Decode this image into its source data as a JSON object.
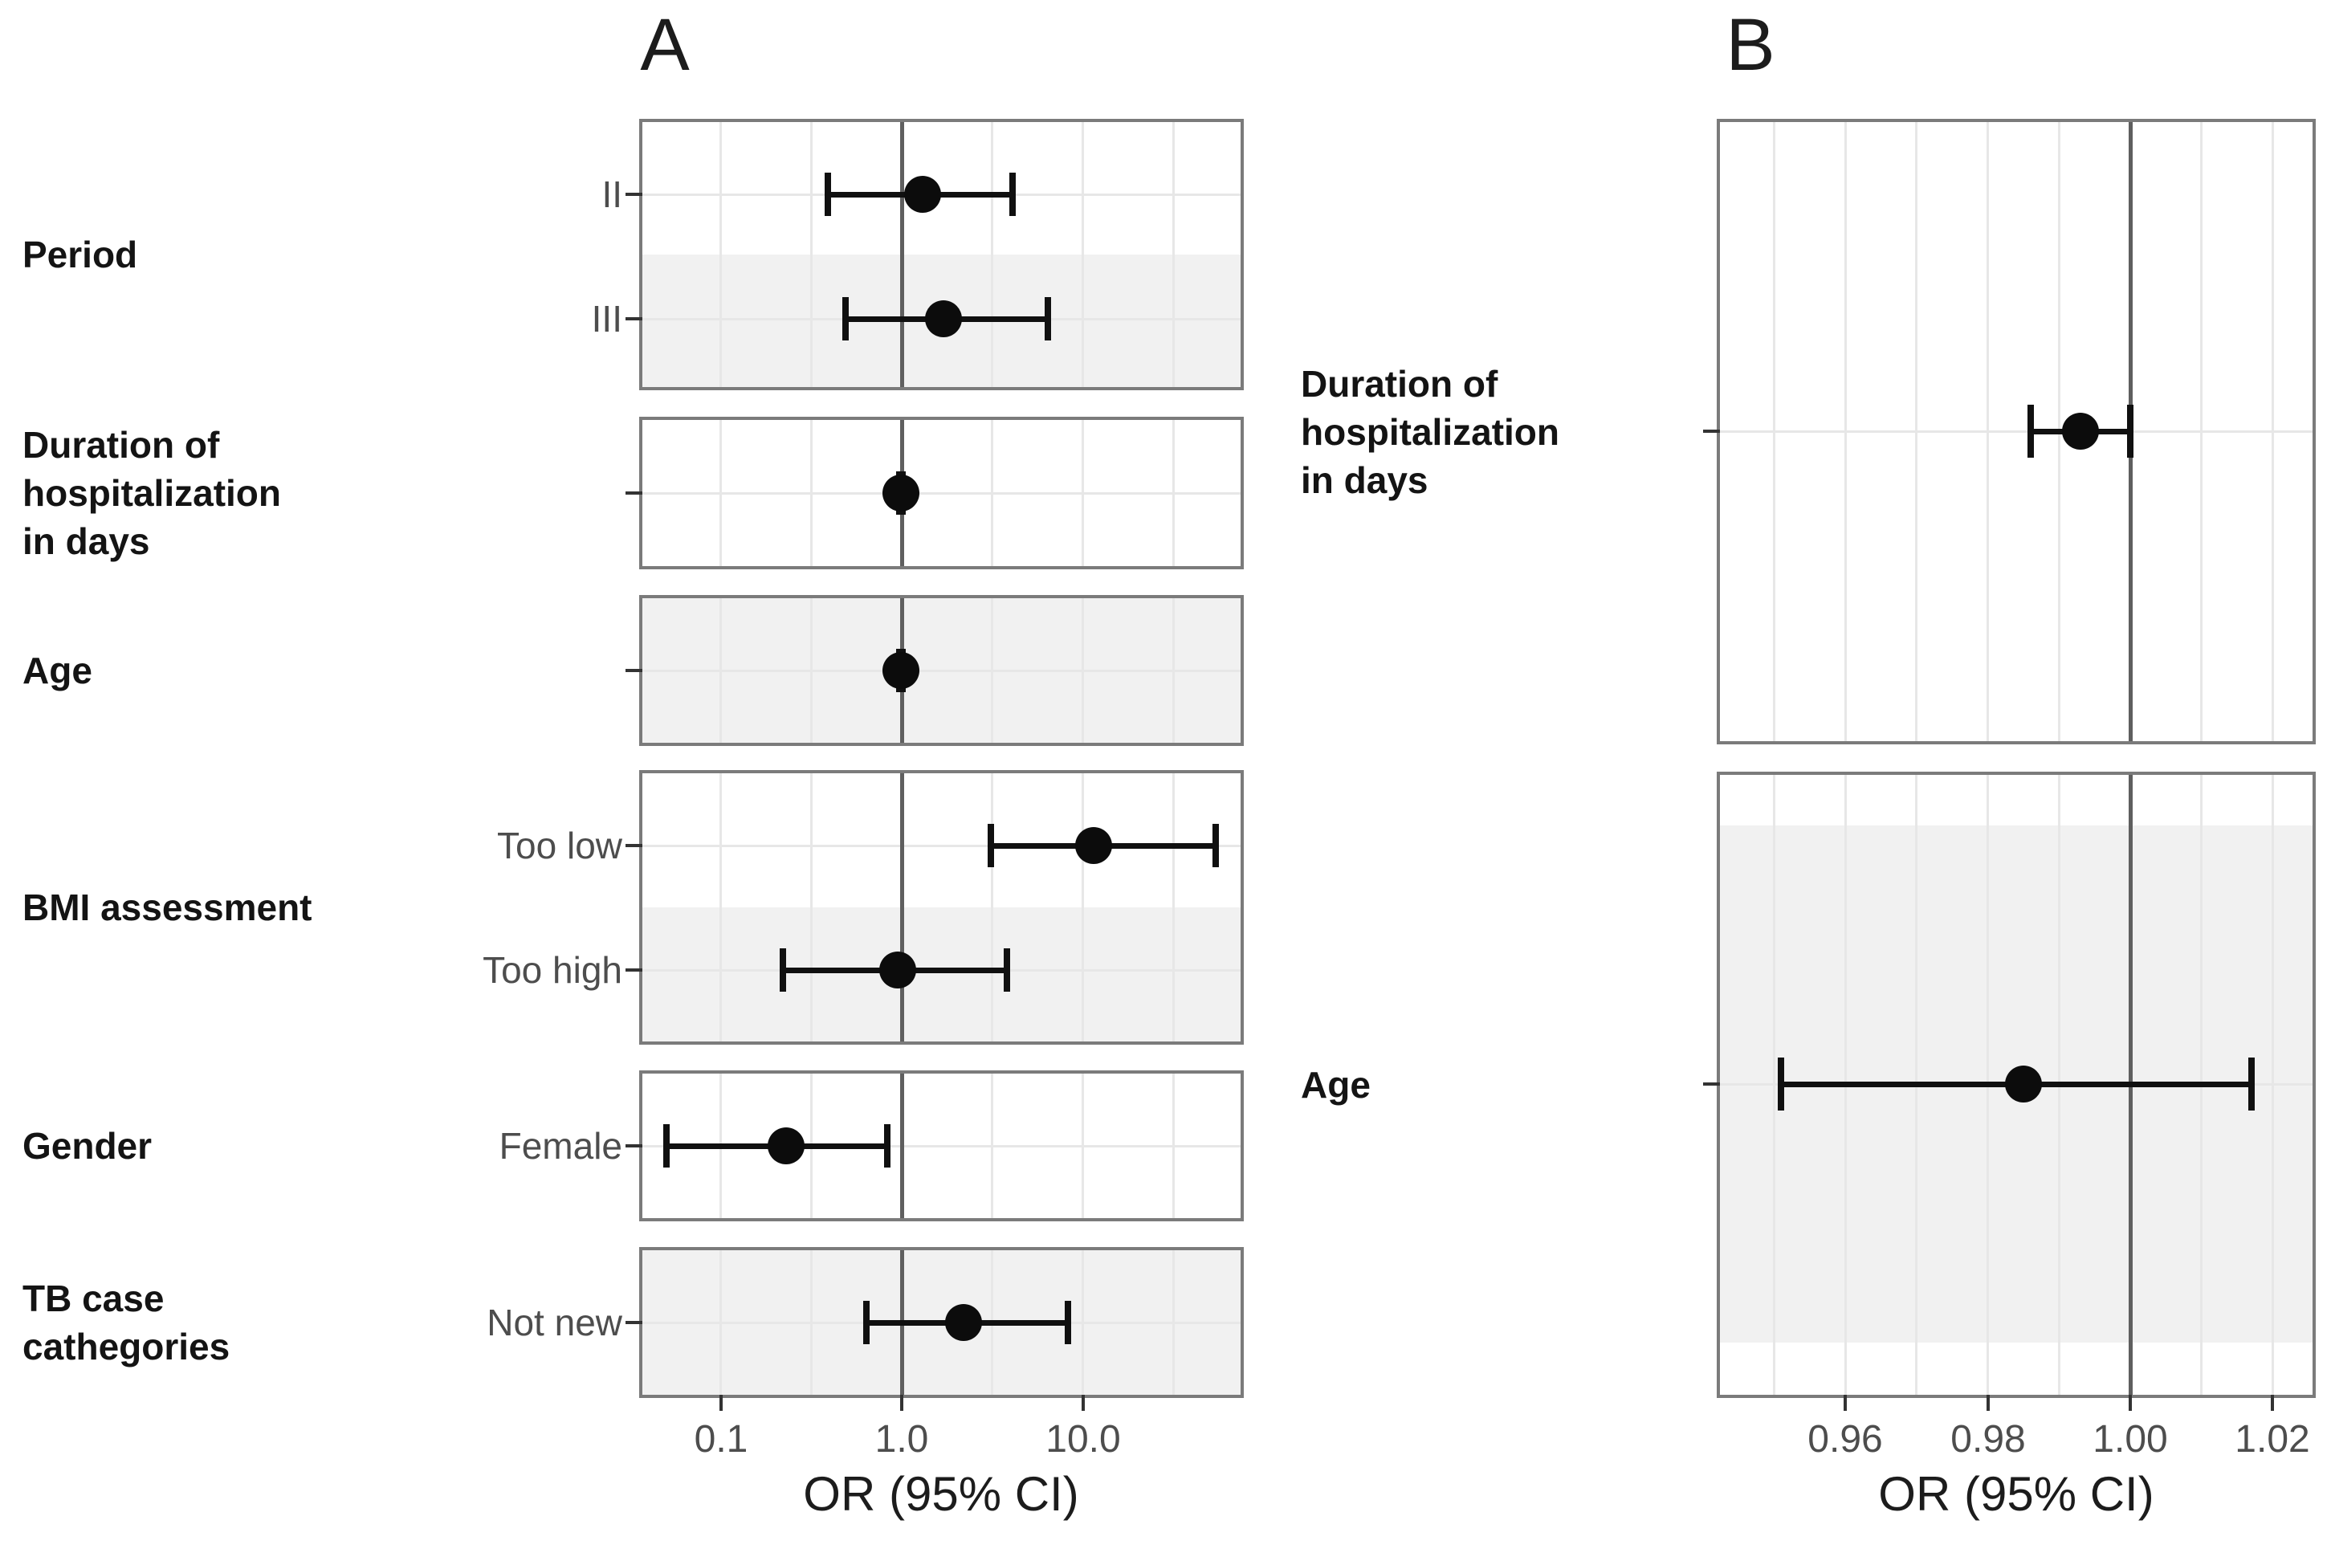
{
  "figure": {
    "panel_letters": [
      "A",
      "B"
    ]
  },
  "chart_data": [
    {
      "panel_label": "A",
      "type": "forest",
      "scale": "log10",
      "xlabel": "OR (95% CI)",
      "ref_line": 1.0,
      "xlim": [
        0.037,
        74
      ],
      "x_ticks": [
        0.1,
        1.0,
        10.0
      ],
      "x_tick_labels": [
        "0.1",
        "1.0",
        "10.0"
      ],
      "minor_gridlines": [
        0.1,
        0.3162,
        3.162,
        10.0,
        31.62
      ],
      "grid": true,
      "groups": [
        {
          "label": "Period",
          "rows": [
            {
              "label": "II",
              "or": 1.3,
              "ci_low": 0.39,
              "ci_high": 4.1
            },
            {
              "label": "III",
              "or": 1.7,
              "ci_low": 0.49,
              "ci_high": 6.4
            }
          ]
        },
        {
          "label": "Duration of\nhospitalization\nin days",
          "rows": [
            {
              "label": "",
              "or": 0.99,
              "ci_low": 0.97,
              "ci_high": 1.01
            }
          ]
        },
        {
          "label": "Age",
          "rows": [
            {
              "label": "",
              "or": 0.99,
              "ci_low": 0.97,
              "ci_high": 1.01
            }
          ]
        },
        {
          "label": "BMI assessment",
          "rows": [
            {
              "label": "Too low",
              "or": 11.5,
              "ci_low": 3.1,
              "ci_high": 54.0
            },
            {
              "label": "Too high",
              "or": 0.95,
              "ci_low": 0.22,
              "ci_high": 3.8
            }
          ]
        },
        {
          "label": "Gender",
          "rows": [
            {
              "label": "Female",
              "or": 0.23,
              "ci_low": 0.05,
              "ci_high": 0.83
            }
          ]
        },
        {
          "label": "TB case\ncathegories",
          "rows": [
            {
              "label": "Not new",
              "or": 2.2,
              "ci_low": 0.64,
              "ci_high": 8.3
            }
          ]
        }
      ]
    },
    {
      "panel_label": "B",
      "type": "forest",
      "scale": "linear",
      "xlabel": "OR (95% CI)",
      "ref_line": 1.0,
      "xlim": [
        0.942,
        1.026
      ],
      "x_ticks": [
        0.96,
        0.98,
        1.0,
        1.02
      ],
      "x_tick_labels": [
        "0.96",
        "0.98",
        "1.00",
        "1.02"
      ],
      "minor_gridlines": [
        0.95,
        0.96,
        0.97,
        0.98,
        0.99,
        1.01,
        1.02
      ],
      "grid": true,
      "groups": [
        {
          "label": "Duration of\nhospitalization\nin days",
          "rows": [
            {
              "label": "",
              "or": 0.993,
              "ci_low": 0.986,
              "ci_high": 1.0
            }
          ]
        },
        {
          "label": "Age",
          "rows": [
            {
              "label": "",
              "or": 0.985,
              "ci_low": 0.951,
              "ci_high": 1.017
            }
          ]
        }
      ]
    }
  ]
}
